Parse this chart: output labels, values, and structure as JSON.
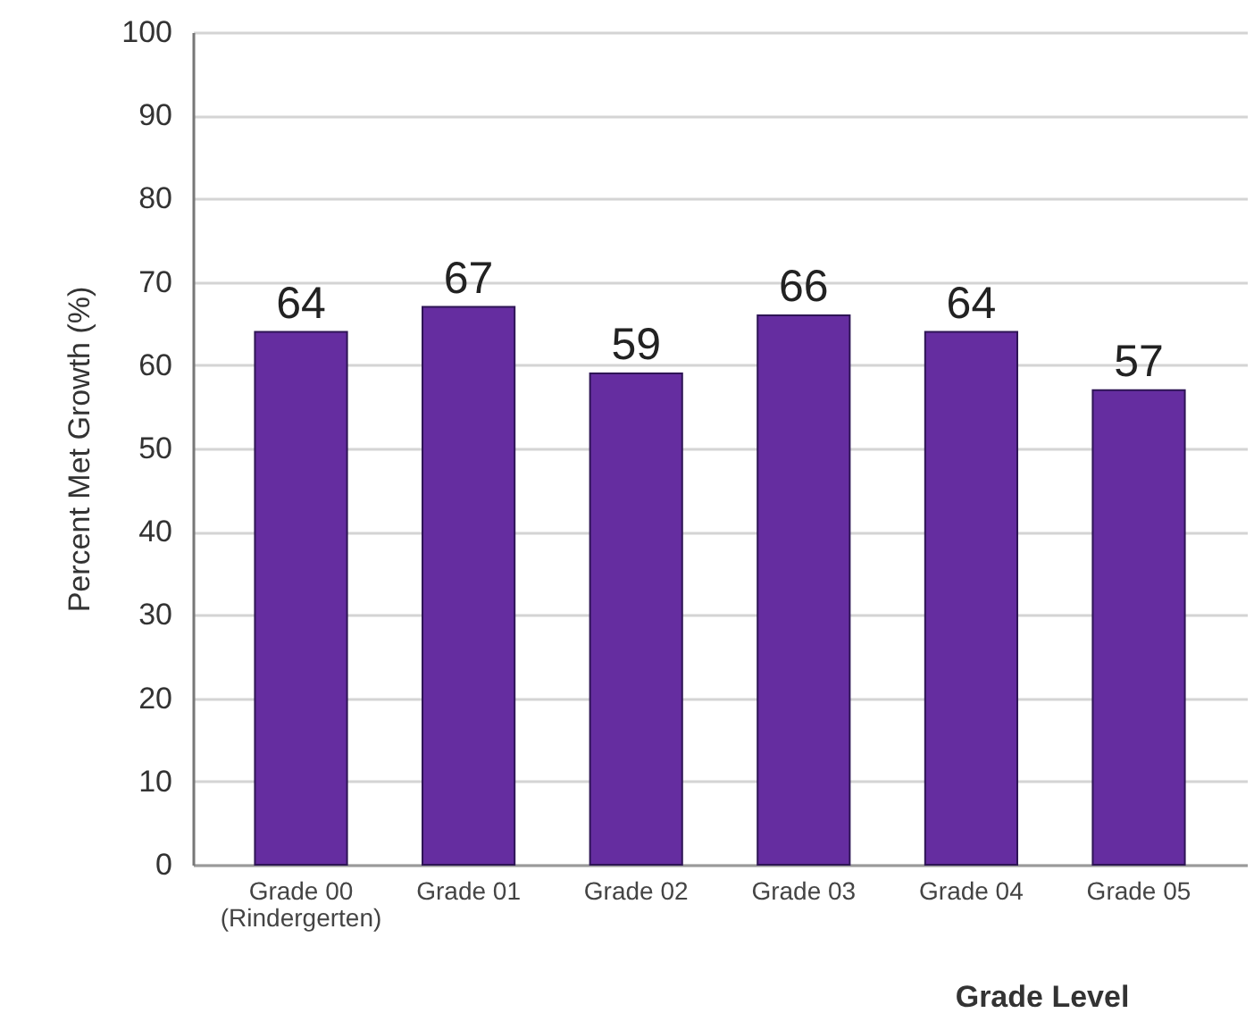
{
  "chart_data": {
    "type": "bar",
    "xlabel": "Grade Level",
    "ylabel": "Percent Met Growth (%)",
    "categories": [
      "Grade 00\n(Rindergerten)",
      "Grade 01",
      "Grade 02",
      "Grade 03",
      "Grade 04",
      "Grade 05"
    ],
    "values": [
      64,
      67,
      59,
      66,
      64,
      57
    ],
    "color": "#652da0",
    "ylim": [
      0,
      100
    ],
    "yticks": [
      0,
      10,
      20,
      30,
      40,
      50,
      60,
      70,
      80,
      90,
      100
    ],
    "grid": "y",
    "data_labels": true
  }
}
